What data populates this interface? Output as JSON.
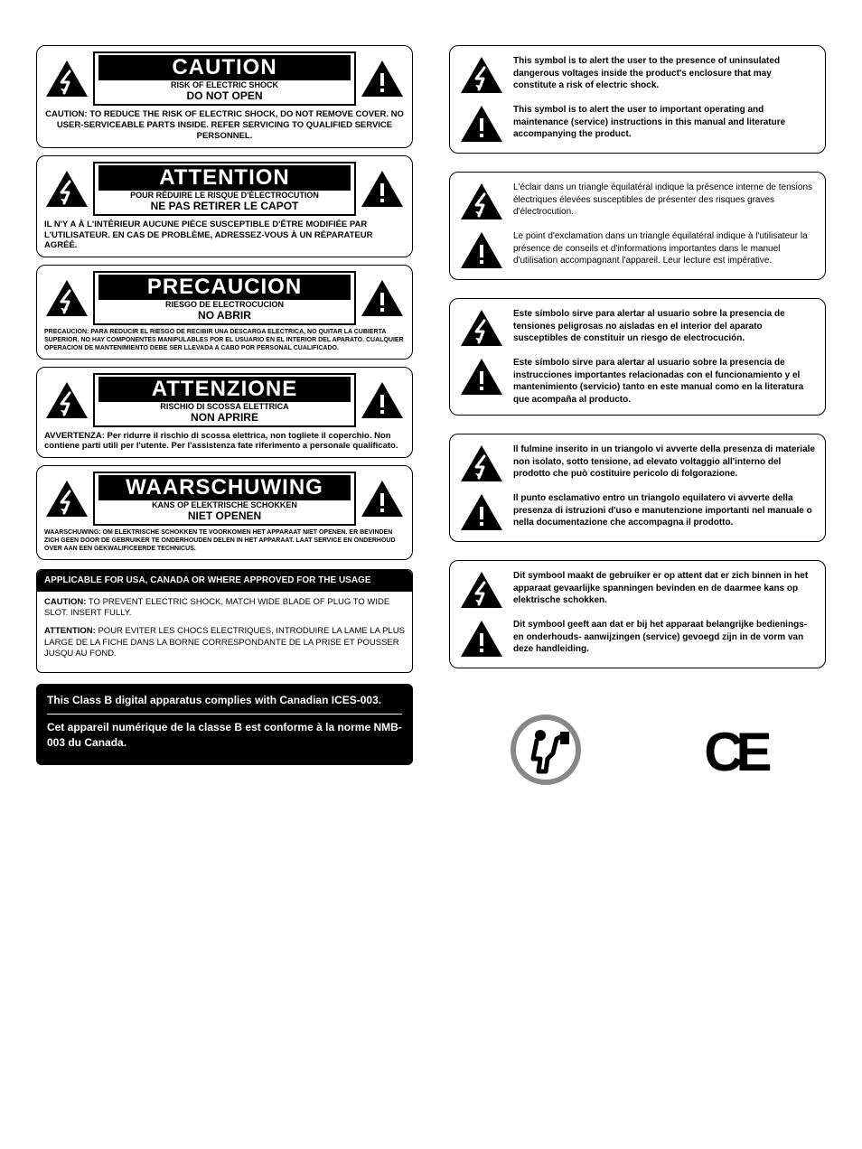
{
  "colors": {
    "black": "#000000",
    "white": "#ffffff"
  },
  "left": {
    "blocks": [
      {
        "big": "CAUTION",
        "sub1": "RISK OF ELECTRIC SHOCK",
        "sub2": "DO NOT OPEN",
        "body": "CAUTION: TO REDUCE THE RISK OF ELECTRIC SHOCK, DO NOT REMOVE COVER. NO USER-SERVICEABLE PARTS INSIDE. REFER SERVICING TO QUALIFIED SERVICE PERSONNEL.",
        "align": "center",
        "size": "normal"
      },
      {
        "big": "ATTENTION",
        "sub1": "POUR RÉDUIRE LE RISQUE D'ÉLECTROCUTION",
        "sub2": "NE PAS RETIRER LE CAPOT",
        "body": "IL N'Y A À L'INTÉRIEUR AUCUNE PIÈCE SUSCEPTIBLE D'ÊTRE MODIFIÉE PAR L'UTILISATEUR. EN CAS DE PROBLÈME, ADRESSEZ-VOUS À UN RÉPARATEUR AGRÉÉ.",
        "align": "left",
        "size": "normal"
      },
      {
        "big": "PRECAUCION",
        "sub1": "RIESGO DE ELECTROCUCION",
        "sub2": "NO ABRIR",
        "body": "PRECAUCION: PARA REDUCIR EL RIESGO DE RECIBIR UNA DESCARGA ELECTRICA, NO QUITAR LA CUBIERTA SUPERIOR. NO HAY COMPONENTES MANIPULABLES POR EL USUARIO EN EL INTERIOR DEL APARATO. CUALQUIER OPERACION DE MANTENIMIENTO DEBE SER LLEVADA A CABO POR PERSONAL CUALIFICADO.",
        "align": "left",
        "size": "small"
      },
      {
        "big": "ATTENZIONE",
        "sub1": "RISCHIO DI SCOSSA ELETTRICA",
        "sub2": "NON APRIRE",
        "body": "AVVERTENZA: Per ridurre il rischio di scossa elettrica, non togliete il coperchio. Non contiene parti utili per l'utente. Per l'assistenza fate riferimento a personale qualificato.",
        "align": "left",
        "size": "normal"
      },
      {
        "big": "WAARSCHUWING",
        "sub1": "KANS OP ELEKTRISCHE SCHOKKEN",
        "sub2": "NIET OPENEN",
        "body": "WAARSCHUWING: OM ELEKTRISCHE SCHOKKEN TE VOORKOMEN HET APPARAAT NIET OPENEN. ER BEVINDEN ZICH GEEN DOOR DE GEBRUIKER TE ONDERHOUDEN DELEN IN HET APPARAAT. LAAT SERVICE EN ONDERHOUD OVER AAN EEN GEKWALIFICEERDE TECHNICUS.",
        "align": "left",
        "size": "small"
      }
    ],
    "usage": {
      "title": "APPLICABLE FOR USA, CANADA OR WHERE APPROVED FOR THE USAGE",
      "p1_label": "CAUTION:",
      "p1_text": " TO PREVENT ELECTRIC SHOCK, MATCH WIDE BLADE OF PLUG TO WIDE SLOT. INSERT FULLY.",
      "p2_label": "ATTENTION:",
      "p2_text": " POUR EVITER LES CHOCS ELECTRIQUES, INTRODUIRE LA LAME LA PLUS LARGE DE LA FICHE DANS LA BORNE CORRESPONDANTE DE LA PRISE ET POUSSER JUSQU AU FOND."
    },
    "info": {
      "line1": "This Class B digital apparatus complies with Canadian ICES-003.",
      "line2": "Cet appareil numérique de la classe B est conforme à la norme NMB-003 du Canada."
    }
  },
  "right": {
    "groups": [
      {
        "rows": [
          {
            "icon": "bolt",
            "text": "This symbol is to alert the user to the presence of uninsulated dangerous voltages inside the product's enclosure that may constitute a risk of electric shock.",
            "bold": true
          },
          {
            "icon": "excl",
            "text": "This symbol is to alert the user to important operating and maintenance (service) instructions in this manual and literature accompanying the product.",
            "bold": true
          }
        ]
      },
      {
        "rows": [
          {
            "icon": "bolt",
            "text": "L'éclair dans un triangle équilatéral indique la présence interne de tensions électriques élevées susceptibles de présenter des risques graves d'électrocution.",
            "bold": false
          },
          {
            "icon": "excl",
            "text": "Le point d'exclamation dans un triangle équilatéral indique à l'utilisateur la présence de conseils et d'informations importantes dans le manuel d'utilisation accompagnant l'appareil. Leur lecture est impérative.",
            "bold": false
          }
        ]
      },
      {
        "rows": [
          {
            "icon": "bolt",
            "text": "Este símbolo sirve para alertar al usuario sobre la presencia de tensiones peligrosas no aisladas en el interior del aparato susceptibles de constituir un riesgo de electrocución.",
            "bold": true
          },
          {
            "icon": "excl",
            "text": "Este símbolo sirve para alertar al usuario sobre la presencia de instrucciones importantes relacionadas con el funcionamiento y el mantenimiento (servicio) tanto en este manual como en la literatura que acompaña al producto.",
            "bold": true
          }
        ]
      },
      {
        "rows": [
          {
            "icon": "bolt",
            "text": "Il fulmine inserito in un triangolo vi avverte della presenza di materiale non isolato, sotto tensione, ad elevato voltaggio all'interno del prodotto che può costituire pericolo di folgorazione.",
            "bold": true
          },
          {
            "icon": "excl",
            "text": "Il punto esclamativo entro un triangolo equilatero vi avverte della presenza di istruzioni d'uso e manutenzione importanti nel manuale o nella documentazione che accompagna il prodotto.",
            "bold": true
          }
        ]
      },
      {
        "rows": [
          {
            "icon": "bolt",
            "text": "Dit symbool maakt de gebruiker er op attent dat er zich binnen in het apparaat gevaarlijke spanningen bevinden en de daarmee kans op elektrische schokken.",
            "bold": true
          },
          {
            "icon": "excl",
            "text": "Dit symbool geeft aan dat er bij het apparaat belangrijke bedienings- en onderhouds- aanwijzingen (service) gevoegd zijn in de vorm van deze handleiding.",
            "bold": true
          }
        ]
      }
    ],
    "ce_text": "CE"
  },
  "icons": {
    "triangle_bolt_title": "lightning-triangle-icon",
    "triangle_excl_title": "exclamation-triangle-icon"
  }
}
